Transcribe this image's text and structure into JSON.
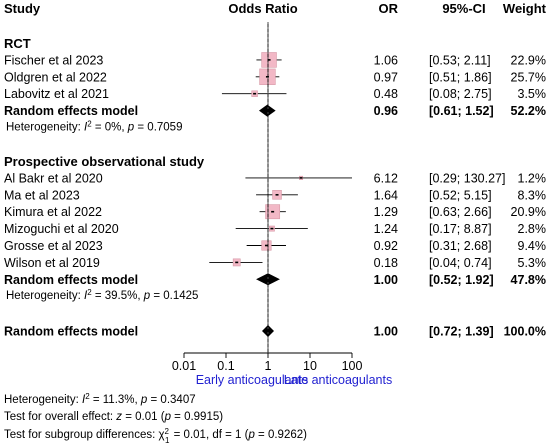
{
  "chart_data": {
    "type": "forest",
    "columns": {
      "study": "Study",
      "plot": "Odds Ratio",
      "or": "OR",
      "ci": "95%-CI",
      "weight": "Weight"
    },
    "x_scale": "log",
    "x_ticks": [
      "0.01",
      "0.1",
      "1",
      "10",
      "100"
    ],
    "x_tick_values": [
      0.01,
      0.1,
      1,
      10,
      100
    ],
    "xlim": [
      0.01,
      100
    ],
    "reference_line": 1,
    "direction_labels": {
      "left": "Early anticoagulants",
      "right": "Late anticoagulants"
    },
    "subgroups": [
      {
        "name": "RCT",
        "studies": [
          {
            "study": "Fischer et al 2023",
            "or": 1.06,
            "lower": 0.53,
            "upper": 2.11,
            "or_text": "1.06",
            "ci_text": "[0.53;   2.11]",
            "weight_text": "22.9%",
            "weight": 22.9
          },
          {
            "study": "Oldgren et al 2022",
            "or": 0.97,
            "lower": 0.51,
            "upper": 1.86,
            "or_text": "0.97",
            "ci_text": "[0.51;   1.86]",
            "weight_text": "25.7%",
            "weight": 25.7
          },
          {
            "study": "Labovitz et al 2021",
            "or": 0.48,
            "lower": 0.08,
            "upper": 2.75,
            "or_text": "0.48",
            "ci_text": "[0.08;   2.75]",
            "weight_text": "3.5%",
            "weight": 3.5
          }
        ],
        "summary": {
          "label": "Random effects model",
          "or": 0.96,
          "lower": 0.61,
          "upper": 1.52,
          "or_text": "0.96",
          "ci_text": "[0.61;   1.52]",
          "weight_text": "52.2%"
        },
        "heterogeneity": {
          "prefix": "Heterogeneity: ",
          "i2_label": "I",
          "i2_sup": "2",
          "rest": " = 0%, ",
          "p_label": "p",
          "p_rest": " = 0.7059"
        }
      },
      {
        "name": "Prospective observational study",
        "studies": [
          {
            "study": "Al Bakr et al 2020",
            "or": 6.12,
            "lower": 0.29,
            "upper": 130.27,
            "or_text": "6.12",
            "ci_text": "[0.29; 130.27]",
            "weight_text": "1.2%",
            "weight": 1.2
          },
          {
            "study": "Ma et al 2023",
            "or": 1.64,
            "lower": 0.52,
            "upper": 5.15,
            "or_text": "1.64",
            "ci_text": "[0.52;   5.15]",
            "weight_text": "8.3%",
            "weight": 8.3
          },
          {
            "study": "Kimura et al 2022",
            "or": 1.29,
            "lower": 0.63,
            "upper": 2.66,
            "or_text": "1.29",
            "ci_text": "[0.63;   2.66]",
            "weight_text": "20.9%",
            "weight": 20.9
          },
          {
            "study": "Mizoguchi et al 2020",
            "or": 1.24,
            "lower": 0.17,
            "upper": 8.87,
            "or_text": "1.24",
            "ci_text": "[0.17;   8.87]",
            "weight_text": "2.8%",
            "weight": 2.8
          },
          {
            "study": "Grosse et al 2023",
            "or": 0.92,
            "lower": 0.31,
            "upper": 2.68,
            "or_text": "0.92",
            "ci_text": "[0.31;   2.68]",
            "weight_text": "9.4%",
            "weight": 9.4
          },
          {
            "study": "Wilson et al 2019",
            "or": 0.18,
            "lower": 0.04,
            "upper": 0.74,
            "or_text": "0.18",
            "ci_text": "[0.04;   0.74]",
            "weight_text": "5.3%",
            "weight": 5.3
          }
        ],
        "summary": {
          "label": "Random effects model",
          "or": 1.0,
          "lower": 0.52,
          "upper": 1.92,
          "or_text": "1.00",
          "ci_text": "[0.52;   1.92]",
          "weight_text": "47.8%"
        },
        "heterogeneity": {
          "prefix": "Heterogeneity: ",
          "i2_label": "I",
          "i2_sup": "2",
          "rest": " = 39.5%, ",
          "p_label": "p",
          "p_rest": " = 0.1425"
        }
      }
    ],
    "overall": {
      "label": "Random effects model",
      "or": 1.0,
      "lower": 0.72,
      "upper": 1.39,
      "or_text": "1.00",
      "ci_text": "[0.72;   1.39]",
      "weight_text": "100.0%"
    },
    "footer": {
      "heterogeneity": {
        "prefix": "Heterogeneity: ",
        "i2_label": "I",
        "i2_sup": "2",
        "rest": " = 11.3%, ",
        "p_label": "p",
        "p_rest": " = 0.3407"
      },
      "overall_effect": {
        "prefix": "Test for overall effect: ",
        "z_label": "z",
        "z_rest": " = 0.01 (",
        "p_label": "p",
        "p_rest": " = 0.9915)"
      },
      "subgroup_diff": {
        "prefix": "Test for subgroup differences: ",
        "chi_label": "χ",
        "chi_sub": "1",
        "chi_sup": "2",
        "rest": " = 0.01, df = 1 (",
        "p_label": "p",
        "p_rest": " = 0.9262)"
      }
    },
    "colors": {
      "square_fill": "#f2b8c6",
      "square_stroke": "#d89aa8",
      "diamond": "#000000",
      "direction_text": "#1f1fd0"
    }
  }
}
